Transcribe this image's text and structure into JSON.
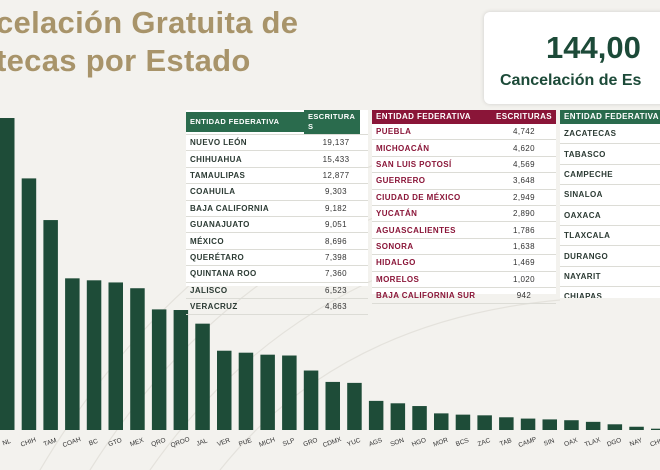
{
  "title": {
    "line1": "celación Gratuita de",
    "line2": "tecas por Estado"
  },
  "kpi": {
    "value": "144,00",
    "label": "Cancelación de Es"
  },
  "colors": {
    "bar": "#1e4c38",
    "title": "#a8946a",
    "table_green": "#2a6b4d",
    "table_red": "#8a1538"
  },
  "tables": {
    "t1": {
      "header_state": "ENTIDAD FEDERATIVA",
      "header_count": "ESCRITURAS",
      "rows": [
        {
          "state": "NUEVO LEÓN",
          "count": "19,137"
        },
        {
          "state": "CHIHUAHUA",
          "count": "15,433"
        },
        {
          "state": "TAMAULIPAS",
          "count": "12,877"
        },
        {
          "state": "COAHUILA",
          "count": "9,303"
        },
        {
          "state": "BAJA CALIFORNIA",
          "count": "9,182"
        },
        {
          "state": "GUANAJUATO",
          "count": "9,051"
        },
        {
          "state": "MÉXICO",
          "count": "8,696"
        },
        {
          "state": "QUERÉTARO",
          "count": "7,398"
        },
        {
          "state": "QUINTANA ROO",
          "count": "7,360"
        },
        {
          "state": "JALISCO",
          "count": "6,523"
        },
        {
          "state": "VERACRUZ",
          "count": "4,863"
        }
      ]
    },
    "t2": {
      "header_state": "ENTIDAD FEDERATIVA",
      "header_count": "ESCRITURAS",
      "rows": [
        {
          "state": "PUEBLA",
          "count": "4,742"
        },
        {
          "state": "MICHOACÁN",
          "count": "4,620"
        },
        {
          "state": "SAN LUIS POTOSÍ",
          "count": "4,569"
        },
        {
          "state": "GUERRERO",
          "count": "3,648"
        },
        {
          "state": "CIUDAD DE MÉXICO",
          "count": "2,949"
        },
        {
          "state": "YUCATÁN",
          "count": "2,890"
        },
        {
          "state": "AGUASCALIENTES",
          "count": "1,786"
        },
        {
          "state": "SONORA",
          "count": "1,638"
        },
        {
          "state": "HIDALGO",
          "count": "1,469"
        },
        {
          "state": "MORELOS",
          "count": "1,020"
        },
        {
          "state": "BAJA CALIFORNIA SUR",
          "count": "942"
        }
      ]
    },
    "t3": {
      "header_state": "ENTIDAD FEDERATIVA",
      "rows": [
        {
          "state": "ZACATECAS"
        },
        {
          "state": "TABASCO"
        },
        {
          "state": "CAMPECHE"
        },
        {
          "state": "SINALOA"
        },
        {
          "state": "OAXACA"
        },
        {
          "state": "TLAXCALA"
        },
        {
          "state": "DURANGO"
        },
        {
          "state": "NAYARIT"
        },
        {
          "state": "CHIAPAS"
        }
      ]
    }
  },
  "chart_data": {
    "type": "bar",
    "title": "",
    "xlabel": "",
    "ylabel": "",
    "ylim": [
      0,
      20000
    ],
    "grid": false,
    "categories": [
      "NL",
      "CHIH",
      "TAM",
      "COAH",
      "BC",
      "GTO",
      "MEX",
      "QRO",
      "QROO",
      "JAL",
      "VER",
      "PUE",
      "MICH",
      "SLP",
      "GRO",
      "CDMX",
      "YUC",
      "AGS",
      "SON",
      "HGO",
      "MOR",
      "BCS",
      "ZAC",
      "TAB",
      "CAMP",
      "SIN",
      "OAX",
      "TLAX",
      "DGO",
      "NAY",
      "CHIS"
    ],
    "values": [
      19137,
      15433,
      12877,
      9303,
      9182,
      9051,
      8696,
      7398,
      7360,
      6523,
      4863,
      4742,
      4620,
      4569,
      3648,
      2949,
      2890,
      1786,
      1638,
      1469,
      1020,
      942,
      900,
      780,
      700,
      650,
      600,
      500,
      350,
      200,
      80
    ]
  }
}
